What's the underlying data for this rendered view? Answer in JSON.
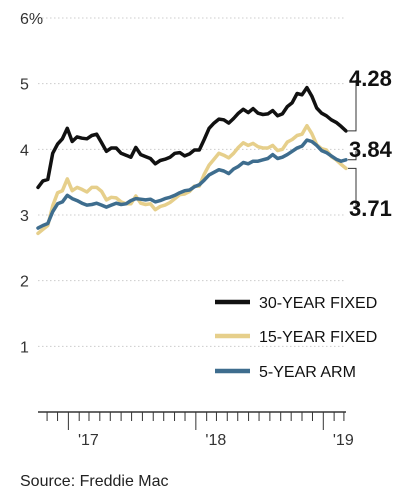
{
  "chart_data": {
    "type": "line",
    "source": "Source: Freddie Mac",
    "y_ticks": [
      {
        "value": 1,
        "label": "1"
      },
      {
        "value": 2,
        "label": "2"
      },
      {
        "value": 3,
        "label": "3"
      },
      {
        "value": 4,
        "label": "4"
      },
      {
        "value": 5,
        "label": "5"
      },
      {
        "value": 6,
        "label": "6%"
      }
    ],
    "ylim": [
      0,
      6
    ],
    "x_range": [
      "2016-10-06",
      "2019-03-07"
    ],
    "x_tick_labels": [
      {
        "date": "2017-01-01",
        "label": "'17"
      },
      {
        "date": "2018-01-01",
        "label": "'18"
      },
      {
        "date": "2019-01-01",
        "label": "'19"
      }
    ],
    "grid": true,
    "legend_position": "bottom-right",
    "series": [
      {
        "name": "30-YEAR FIXED",
        "color": "#111111",
        "end_label": "4.28",
        "points": [
          [
            "2016-10-06",
            3.42
          ],
          [
            "2016-10-20",
            3.52
          ],
          [
            "2016-11-03",
            3.54
          ],
          [
            "2016-11-17",
            3.94
          ],
          [
            "2016-12-01",
            4.08
          ],
          [
            "2016-12-15",
            4.16
          ],
          [
            "2016-12-29",
            4.32
          ],
          [
            "2017-01-12",
            4.12
          ],
          [
            "2017-01-26",
            4.19
          ],
          [
            "2017-02-09",
            4.17
          ],
          [
            "2017-02-23",
            4.16
          ],
          [
            "2017-03-09",
            4.21
          ],
          [
            "2017-03-23",
            4.23
          ],
          [
            "2017-04-06",
            4.1
          ],
          [
            "2017-04-20",
            3.97
          ],
          [
            "2017-05-04",
            4.02
          ],
          [
            "2017-05-18",
            4.02
          ],
          [
            "2017-06-01",
            3.94
          ],
          [
            "2017-06-15",
            3.91
          ],
          [
            "2017-06-29",
            3.88
          ],
          [
            "2017-07-13",
            4.03
          ],
          [
            "2017-07-27",
            3.92
          ],
          [
            "2017-08-10",
            3.89
          ],
          [
            "2017-08-24",
            3.86
          ],
          [
            "2017-09-07",
            3.78
          ],
          [
            "2017-09-21",
            3.83
          ],
          [
            "2017-10-05",
            3.85
          ],
          [
            "2017-10-19",
            3.88
          ],
          [
            "2017-11-02",
            3.94
          ],
          [
            "2017-11-16",
            3.95
          ],
          [
            "2017-11-30",
            3.9
          ],
          [
            "2017-12-14",
            3.93
          ],
          [
            "2017-12-28",
            3.99
          ],
          [
            "2018-01-11",
            3.99
          ],
          [
            "2018-01-25",
            4.15
          ],
          [
            "2018-02-08",
            4.32
          ],
          [
            "2018-02-22",
            4.4
          ],
          [
            "2018-03-08",
            4.46
          ],
          [
            "2018-03-22",
            4.45
          ],
          [
            "2018-04-05",
            4.4
          ],
          [
            "2018-04-19",
            4.47
          ],
          [
            "2018-05-03",
            4.55
          ],
          [
            "2018-05-17",
            4.61
          ],
          [
            "2018-05-31",
            4.56
          ],
          [
            "2018-06-14",
            4.62
          ],
          [
            "2018-06-28",
            4.55
          ],
          [
            "2018-07-12",
            4.53
          ],
          [
            "2018-07-26",
            4.54
          ],
          [
            "2018-08-09",
            4.59
          ],
          [
            "2018-08-23",
            4.51
          ],
          [
            "2018-09-06",
            4.54
          ],
          [
            "2018-09-20",
            4.65
          ],
          [
            "2018-10-04",
            4.71
          ],
          [
            "2018-10-18",
            4.85
          ],
          [
            "2018-11-01",
            4.83
          ],
          [
            "2018-11-15",
            4.94
          ],
          [
            "2018-11-29",
            4.81
          ],
          [
            "2018-12-13",
            4.63
          ],
          [
            "2018-12-27",
            4.55
          ],
          [
            "2019-01-10",
            4.51
          ],
          [
            "2019-01-24",
            4.45
          ],
          [
            "2019-02-07",
            4.41
          ],
          [
            "2019-02-21",
            4.35
          ],
          [
            "2019-03-07",
            4.28
          ]
        ]
      },
      {
        "name": "15-YEAR FIXED",
        "color": "#e6cf8b",
        "end_label": "3.71",
        "points": [
          [
            "2016-10-06",
            2.72
          ],
          [
            "2016-10-20",
            2.78
          ],
          [
            "2016-11-03",
            2.84
          ],
          [
            "2016-11-17",
            3.14
          ],
          [
            "2016-12-01",
            3.34
          ],
          [
            "2016-12-15",
            3.37
          ],
          [
            "2016-12-29",
            3.55
          ],
          [
            "2017-01-12",
            3.37
          ],
          [
            "2017-01-26",
            3.42
          ],
          [
            "2017-02-09",
            3.39
          ],
          [
            "2017-02-23",
            3.35
          ],
          [
            "2017-03-09",
            3.42
          ],
          [
            "2017-03-23",
            3.42
          ],
          [
            "2017-04-06",
            3.36
          ],
          [
            "2017-04-20",
            3.23
          ],
          [
            "2017-05-04",
            3.27
          ],
          [
            "2017-05-18",
            3.26
          ],
          [
            "2017-06-01",
            3.2
          ],
          [
            "2017-06-15",
            3.17
          ],
          [
            "2017-06-29",
            3.17
          ],
          [
            "2017-07-13",
            3.29
          ],
          [
            "2017-07-27",
            3.18
          ],
          [
            "2017-08-10",
            3.16
          ],
          [
            "2017-08-24",
            3.17
          ],
          [
            "2017-09-07",
            3.08
          ],
          [
            "2017-09-21",
            3.13
          ],
          [
            "2017-10-05",
            3.15
          ],
          [
            "2017-10-19",
            3.19
          ],
          [
            "2017-11-02",
            3.25
          ],
          [
            "2017-11-16",
            3.31
          ],
          [
            "2017-11-30",
            3.32
          ],
          [
            "2017-12-14",
            3.36
          ],
          [
            "2017-12-28",
            3.44
          ],
          [
            "2018-01-11",
            3.44
          ],
          [
            "2018-01-25",
            3.62
          ],
          [
            "2018-02-08",
            3.76
          ],
          [
            "2018-02-22",
            3.85
          ],
          [
            "2018-03-08",
            3.94
          ],
          [
            "2018-03-22",
            3.91
          ],
          [
            "2018-04-05",
            3.87
          ],
          [
            "2018-04-19",
            3.94
          ],
          [
            "2018-05-03",
            4.03
          ],
          [
            "2018-05-17",
            4.1
          ],
          [
            "2018-05-31",
            4.06
          ],
          [
            "2018-06-14",
            4.09
          ],
          [
            "2018-06-28",
            4.04
          ],
          [
            "2018-07-12",
            4.02
          ],
          [
            "2018-07-26",
            4.02
          ],
          [
            "2018-08-09",
            4.06
          ],
          [
            "2018-08-23",
            3.98
          ],
          [
            "2018-09-06",
            4.0
          ],
          [
            "2018-09-20",
            4.11
          ],
          [
            "2018-10-04",
            4.15
          ],
          [
            "2018-10-18",
            4.21
          ],
          [
            "2018-11-01",
            4.23
          ],
          [
            "2018-11-15",
            4.36
          ],
          [
            "2018-11-29",
            4.24
          ],
          [
            "2018-12-13",
            4.07
          ],
          [
            "2018-12-27",
            4.01
          ],
          [
            "2019-01-10",
            3.99
          ],
          [
            "2019-01-24",
            3.89
          ],
          [
            "2019-02-07",
            3.84
          ],
          [
            "2019-02-21",
            3.77
          ],
          [
            "2019-03-07",
            3.71
          ]
        ]
      },
      {
        "name": "5-YEAR ARM",
        "color": "#3e6d8e",
        "end_label": "3.84",
        "points": [
          [
            "2016-10-06",
            2.8
          ],
          [
            "2016-10-20",
            2.84
          ],
          [
            "2016-11-03",
            2.87
          ],
          [
            "2016-11-17",
            3.05
          ],
          [
            "2016-12-01",
            3.17
          ],
          [
            "2016-12-15",
            3.2
          ],
          [
            "2016-12-29",
            3.3
          ],
          [
            "2017-01-12",
            3.25
          ],
          [
            "2017-01-26",
            3.22
          ],
          [
            "2017-02-09",
            3.18
          ],
          [
            "2017-02-23",
            3.15
          ],
          [
            "2017-03-09",
            3.16
          ],
          [
            "2017-03-23",
            3.18
          ],
          [
            "2017-04-06",
            3.15
          ],
          [
            "2017-04-20",
            3.12
          ],
          [
            "2017-05-04",
            3.15
          ],
          [
            "2017-05-18",
            3.18
          ],
          [
            "2017-06-01",
            3.16
          ],
          [
            "2017-06-15",
            3.17
          ],
          [
            "2017-06-29",
            3.22
          ],
          [
            "2017-07-13",
            3.25
          ],
          [
            "2017-07-27",
            3.24
          ],
          [
            "2017-08-10",
            3.23
          ],
          [
            "2017-08-24",
            3.24
          ],
          [
            "2017-09-07",
            3.2
          ],
          [
            "2017-09-21",
            3.22
          ],
          [
            "2017-10-05",
            3.25
          ],
          [
            "2017-10-19",
            3.27
          ],
          [
            "2017-11-02",
            3.3
          ],
          [
            "2017-11-16",
            3.34
          ],
          [
            "2017-11-30",
            3.37
          ],
          [
            "2017-12-14",
            3.38
          ],
          [
            "2017-12-28",
            3.43
          ],
          [
            "2018-01-11",
            3.46
          ],
          [
            "2018-01-25",
            3.53
          ],
          [
            "2018-02-08",
            3.61
          ],
          [
            "2018-02-22",
            3.65
          ],
          [
            "2018-03-08",
            3.69
          ],
          [
            "2018-03-22",
            3.67
          ],
          [
            "2018-04-05",
            3.63
          ],
          [
            "2018-04-19",
            3.7
          ],
          [
            "2018-05-03",
            3.74
          ],
          [
            "2018-05-17",
            3.8
          ],
          [
            "2018-05-31",
            3.78
          ],
          [
            "2018-06-14",
            3.82
          ],
          [
            "2018-06-28",
            3.82
          ],
          [
            "2018-07-12",
            3.84
          ],
          [
            "2018-07-26",
            3.86
          ],
          [
            "2018-08-09",
            3.92
          ],
          [
            "2018-08-23",
            3.86
          ],
          [
            "2018-09-06",
            3.88
          ],
          [
            "2018-09-20",
            3.92
          ],
          [
            "2018-10-04",
            3.97
          ],
          [
            "2018-10-18",
            4.02
          ],
          [
            "2018-11-01",
            4.05
          ],
          [
            "2018-11-15",
            4.14
          ],
          [
            "2018-11-29",
            4.12
          ],
          [
            "2018-12-13",
            4.06
          ],
          [
            "2018-12-27",
            3.98
          ],
          [
            "2019-01-10",
            3.95
          ],
          [
            "2019-01-24",
            3.9
          ],
          [
            "2019-02-07",
            3.85
          ],
          [
            "2019-02-21",
            3.82
          ],
          [
            "2019-03-07",
            3.84
          ]
        ]
      }
    ]
  }
}
